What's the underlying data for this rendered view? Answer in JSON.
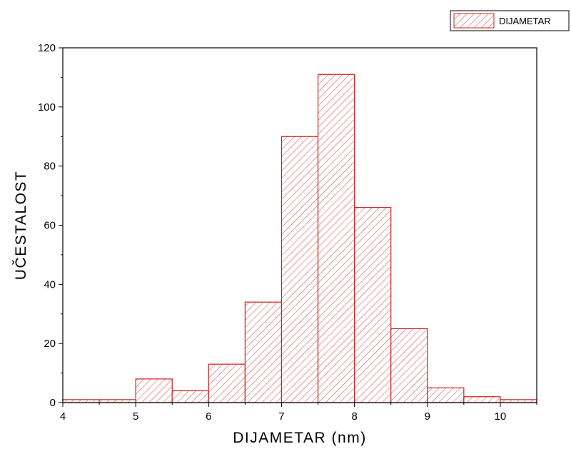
{
  "chart_data": {
    "type": "bar",
    "bin_edges": [
      4,
      4.5,
      5,
      5.5,
      6,
      6.5,
      7,
      7.5,
      8,
      8.5,
      9,
      9.5,
      10,
      10.5
    ],
    "values": [
      1,
      1,
      8,
      4,
      13,
      34,
      90,
      111,
      66,
      25,
      5,
      2,
      1
    ],
    "xlabel": "DIJAMETAR (nm)",
    "ylabel": "UČESTALOST",
    "xlim": [
      4,
      10.5
    ],
    "ylim": [
      0,
      120
    ],
    "xticks": [
      4,
      5,
      6,
      7,
      8,
      9,
      10
    ],
    "yticks": [
      0,
      20,
      40,
      60,
      80,
      100,
      120
    ],
    "legend": {
      "entries": [
        "DIJAMETAR"
      ],
      "placement": "top-right"
    },
    "grid": false,
    "colors": {
      "bar_stroke": "#cc2222",
      "hatch": "#d84040",
      "axis": "#000000"
    }
  }
}
